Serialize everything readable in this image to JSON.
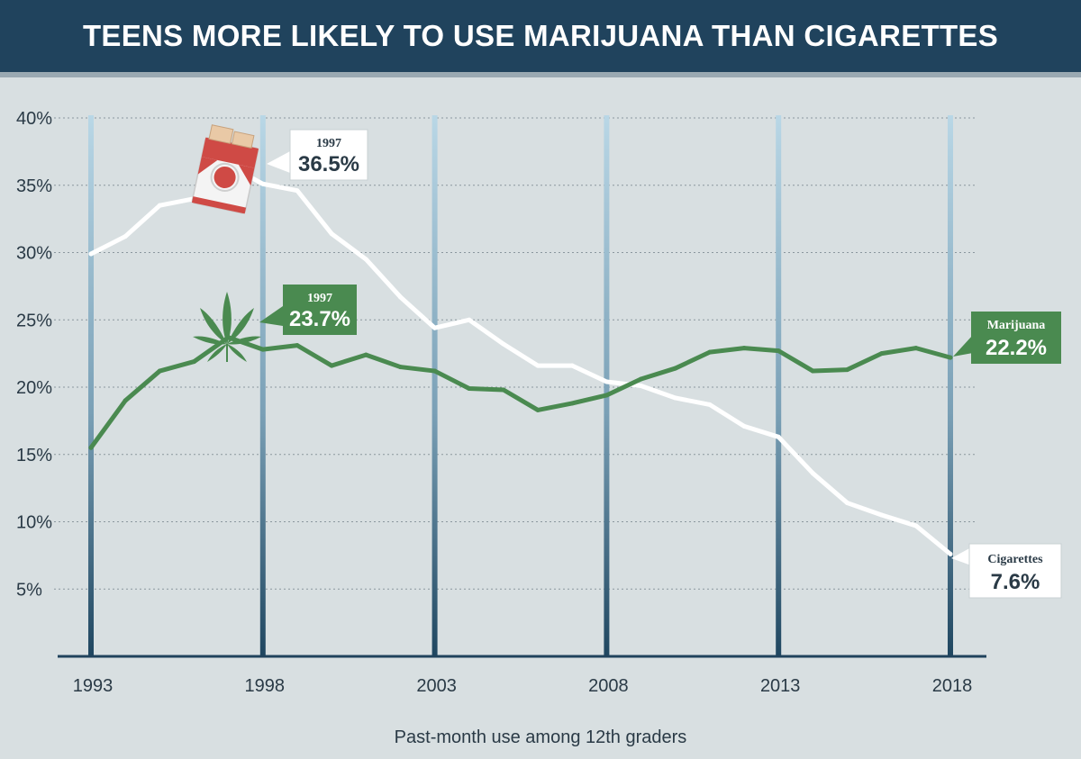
{
  "header": {
    "title": "TEENS MORE LIKELY TO USE MARIJUANA THAN CIGARETTES"
  },
  "chart_data": {
    "type": "line",
    "title": "TEENS MORE LIKELY TO USE MARIJUANA THAN CIGARETTES",
    "xlabel": "Past-month use among 12th graders",
    "ylabel": "",
    "x": [
      1993,
      1994,
      1995,
      1996,
      1997,
      1998,
      1999,
      2000,
      2001,
      2002,
      2003,
      2004,
      2005,
      2006,
      2007,
      2008,
      2009,
      2010,
      2011,
      2012,
      2013,
      2014,
      2015,
      2016,
      2017,
      2018
    ],
    "xlim": [
      1993,
      2018
    ],
    "ylim": [
      0,
      40
    ],
    "x_ticks": [
      "1993",
      "1998",
      "2003",
      "2008",
      "2013",
      "2018"
    ],
    "y_ticks": [
      "5%",
      "10%",
      "15%",
      "20%",
      "25%",
      "30%",
      "35%",
      "40%"
    ],
    "grid": "dotted horizontal gridlines, vertical bars at tick years",
    "series": [
      {
        "name": "Cigarettes",
        "color": "#ffffff",
        "values": [
          29.9,
          31.2,
          33.5,
          34.0,
          36.5,
          35.1,
          34.6,
          31.4,
          29.5,
          26.7,
          24.4,
          25.0,
          23.2,
          21.6,
          21.6,
          20.4,
          20.1,
          19.2,
          18.7,
          17.1,
          16.3,
          13.6,
          11.4,
          10.5,
          9.7,
          7.6
        ]
      },
      {
        "name": "Marijuana",
        "color": "#4a8a50",
        "values": [
          15.5,
          19.0,
          21.2,
          21.9,
          23.7,
          22.8,
          23.1,
          21.6,
          22.4,
          21.5,
          21.2,
          19.9,
          19.8,
          18.3,
          18.8,
          19.4,
          20.6,
          21.4,
          22.6,
          22.9,
          22.7,
          21.2,
          21.3,
          22.5,
          22.9,
          22.2
        ]
      }
    ],
    "annotations": [
      {
        "name": "cig-peak",
        "year_label": "1997",
        "value_label": "36.5%"
      },
      {
        "name": "mj-peak",
        "year_label": "1997",
        "value_label": "23.7%"
      },
      {
        "name": "mj-end",
        "series_label": "Marijuana",
        "value_label": "22.2%"
      },
      {
        "name": "cig-end",
        "series_label": "Cigarettes",
        "value_label": "7.6%"
      }
    ],
    "icons": [
      "cigarette-pack-icon",
      "cannabis-leaf-icon"
    ]
  }
}
